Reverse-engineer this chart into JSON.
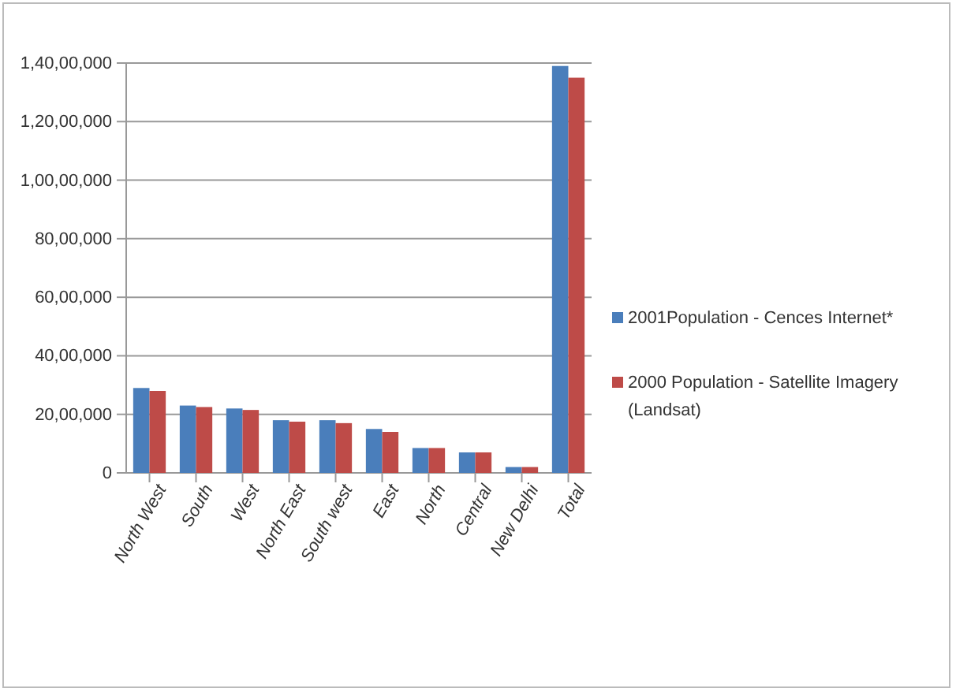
{
  "chart_data": {
    "type": "bar",
    "categories": [
      "North West",
      "South",
      "West",
      "North East",
      "South west",
      "East",
      "North",
      "Central",
      "New Delhi",
      "Total"
    ],
    "series": [
      {
        "name": "2001Population - Cences Internet*",
        "color": "#4a7ebb",
        "values": [
          2900000,
          2300000,
          2200000,
          1800000,
          1800000,
          1500000,
          850000,
          700000,
          200000,
          13900000
        ]
      },
      {
        "name": "2000 Population - Satellite Imagery (Landsat)",
        "color": "#be4b48",
        "values": [
          2800000,
          2250000,
          2150000,
          1750000,
          1700000,
          1400000,
          850000,
          700000,
          200000,
          13500000
        ]
      }
    ],
    "ylim": [
      0,
      14000000
    ],
    "yticks": [
      0,
      {
        "value": 2000000,
        "label": "20,00,000"
      },
      {
        "value": 4000000,
        "label": "40,00,000"
      },
      {
        "value": 6000000,
        "label": "60,00,000"
      },
      {
        "value": 8000000,
        "label": "80,00,000"
      },
      {
        "value": 10000000,
        "label": "1,00,00,000"
      },
      {
        "value": 12000000,
        "label": "1,20,00,000"
      },
      {
        "value": 14000000,
        "label": "1,40,00,000"
      }
    ],
    "grid": "y",
    "legend": "right"
  }
}
